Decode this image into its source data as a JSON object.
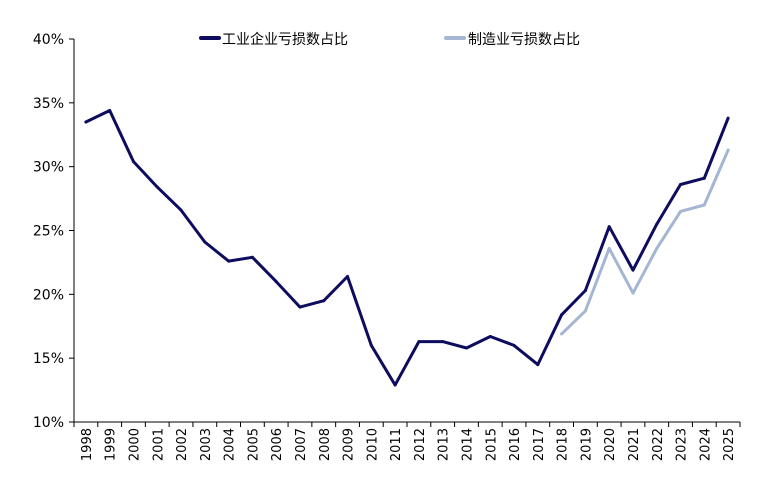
{
  "chart_data": {
    "type": "line",
    "x": [
      "1998",
      "1999",
      "2000",
      "2001",
      "2002",
      "2003",
      "2004",
      "2005",
      "2006",
      "2007",
      "2008",
      "2009",
      "2010",
      "2011",
      "2012",
      "2013",
      "2014",
      "2015",
      "2016",
      "2017",
      "2018",
      "2019",
      "2020",
      "2021",
      "2022",
      "2023",
      "2024",
      "2025"
    ],
    "ylim": [
      0.1,
      0.4
    ],
    "yticks": [
      {
        "value": 0.4,
        "label": "40%"
      },
      {
        "value": 0.35,
        "label": "35%"
      },
      {
        "value": 0.3,
        "label": "30%"
      },
      {
        "value": 0.25,
        "label": "25%"
      },
      {
        "value": 0.2,
        "label": "20%"
      },
      {
        "value": 0.15,
        "label": "15%"
      },
      {
        "value": 0.1,
        "label": "10%"
      }
    ],
    "grid": false,
    "legend_position": "top",
    "series": [
      {
        "name": "工业企业亏损数占比",
        "color": "#0d0c5e",
        "values": [
          0.335,
          0.344,
          0.304,
          0.284,
          0.266,
          0.241,
          0.226,
          0.229,
          0.21,
          0.19,
          0.195,
          0.214,
          0.16,
          0.129,
          0.163,
          0.163,
          0.158,
          0.167,
          0.16,
          0.145,
          0.184,
          0.203,
          0.253,
          0.219,
          0.255,
          0.286,
          0.291,
          0.338
        ]
      },
      {
        "name": "制造业亏损数占比",
        "color": "#a5b6d3",
        "values": [
          null,
          null,
          null,
          null,
          null,
          null,
          null,
          null,
          null,
          null,
          null,
          null,
          null,
          null,
          null,
          null,
          null,
          null,
          null,
          null,
          0.169,
          0.187,
          0.236,
          0.201,
          0.236,
          0.265,
          0.27,
          0.313
        ]
      }
    ]
  }
}
